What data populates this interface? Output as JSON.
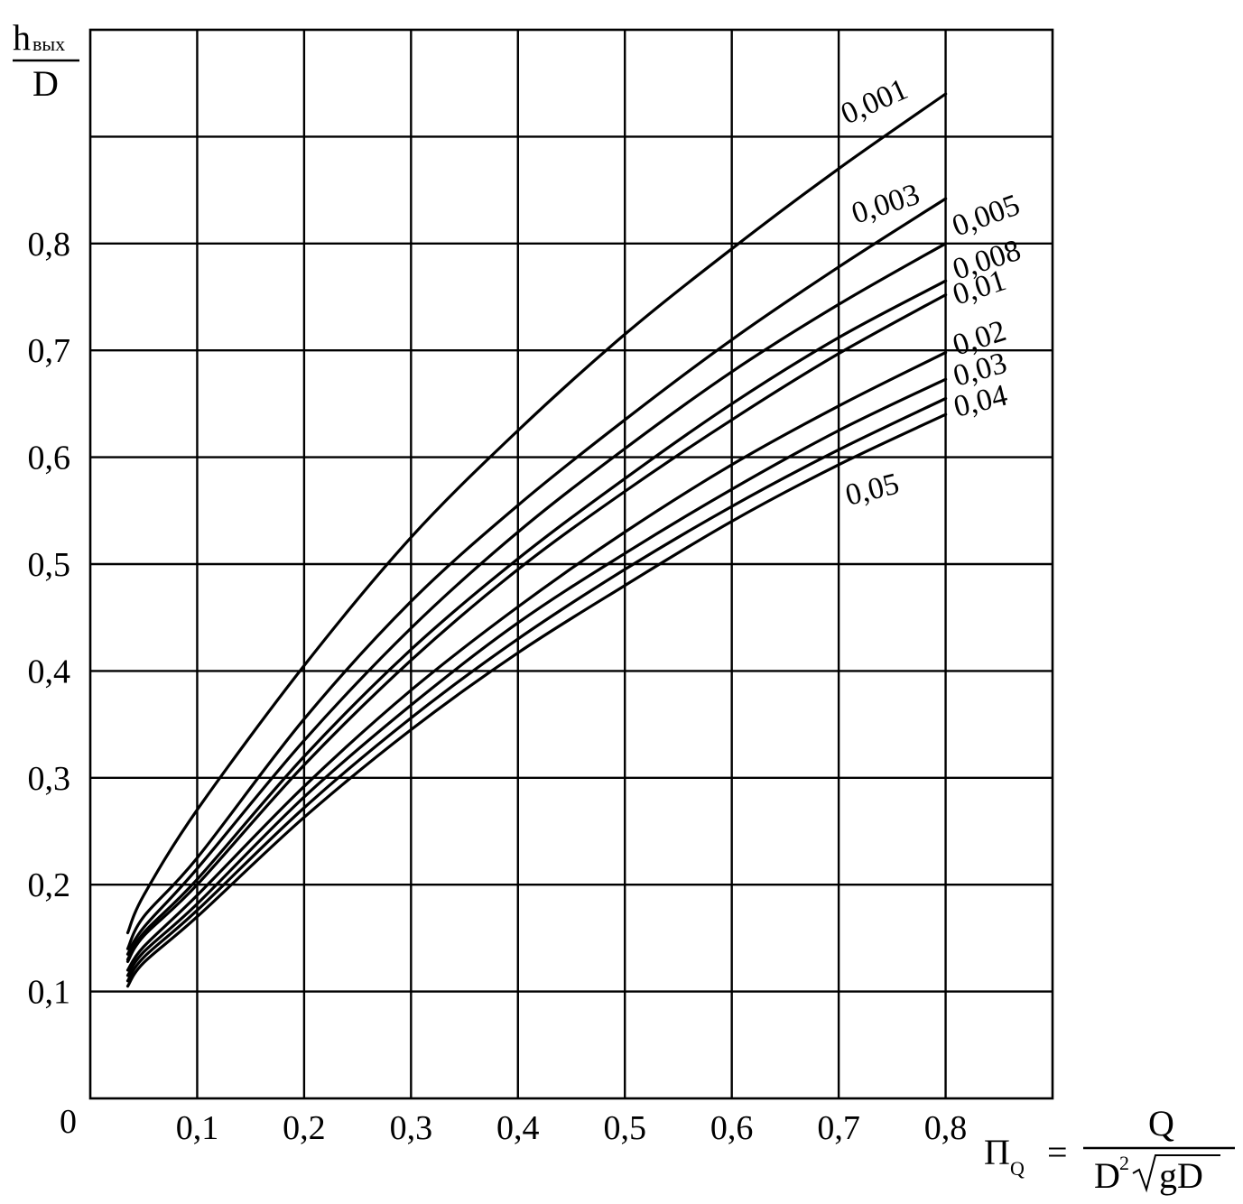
{
  "chart_data": {
    "type": "line",
    "title": "",
    "ylabel": {
      "numerator": "h",
      "numerator_sub": "вых",
      "denominator": "D"
    },
    "xlabel": {
      "symbol": "Π",
      "symbol_sub": "Q",
      "equals": "=",
      "numerator": "Q",
      "denominator_D": "D",
      "denominator_sup": "2",
      "denominator_root": "gD"
    },
    "origin_label": "0",
    "x_ticks": [
      "0,1",
      "0,2",
      "0,3",
      "0,4",
      "0,5",
      "0,6",
      "0,7",
      "0,8"
    ],
    "x_tick_values": [
      0.1,
      0.2,
      0.3,
      0.4,
      0.5,
      0.6,
      0.7,
      0.8
    ],
    "y_ticks": [
      "0,1",
      "0,2",
      "0,3",
      "0,4",
      "0,5",
      "0,6",
      "0,7",
      "0,8"
    ],
    "y_tick_values": [
      0.1,
      0.2,
      0.3,
      0.4,
      0.5,
      0.6,
      0.7,
      0.8
    ],
    "xlim": [
      0,
      0.9
    ],
    "ylim": [
      0,
      1.0
    ],
    "grid": true,
    "series": [
      {
        "name": "0,001",
        "x": [
          0.035,
          0.05,
          0.1,
          0.2,
          0.3,
          0.4,
          0.5,
          0.6,
          0.7,
          0.8
        ],
        "y": [
          0.155,
          0.19,
          0.27,
          0.405,
          0.525,
          0.625,
          0.715,
          0.795,
          0.87,
          0.94
        ]
      },
      {
        "name": "0,003",
        "x": [
          0.035,
          0.05,
          0.1,
          0.2,
          0.3,
          0.4,
          0.5,
          0.6,
          0.7,
          0.8
        ],
        "y": [
          0.14,
          0.17,
          0.225,
          0.355,
          0.465,
          0.555,
          0.635,
          0.71,
          0.778,
          0.842
        ]
      },
      {
        "name": "0,005",
        "x": [
          0.035,
          0.05,
          0.1,
          0.2,
          0.3,
          0.4,
          0.5,
          0.6,
          0.7,
          0.8
        ],
        "y": [
          0.135,
          0.16,
          0.215,
          0.335,
          0.44,
          0.53,
          0.608,
          0.68,
          0.743,
          0.8
        ]
      },
      {
        "name": "0,008",
        "x": [
          0.035,
          0.05,
          0.1,
          0.2,
          0.3,
          0.4,
          0.5,
          0.6,
          0.7,
          0.8
        ],
        "y": [
          0.13,
          0.155,
          0.205,
          0.32,
          0.42,
          0.505,
          0.58,
          0.65,
          0.712,
          0.765
        ]
      },
      {
        "name": "0,01",
        "x": [
          0.035,
          0.05,
          0.1,
          0.2,
          0.3,
          0.4,
          0.5,
          0.6,
          0.7,
          0.8
        ],
        "y": [
          0.128,
          0.152,
          0.2,
          0.312,
          0.41,
          0.495,
          0.568,
          0.635,
          0.697,
          0.752
        ]
      },
      {
        "name": "0,02",
        "x": [
          0.035,
          0.05,
          0.1,
          0.2,
          0.3,
          0.4,
          0.5,
          0.6,
          0.7,
          0.8
        ],
        "y": [
          0.12,
          0.142,
          0.19,
          0.292,
          0.382,
          0.46,
          0.53,
          0.593,
          0.648,
          0.698
        ]
      },
      {
        "name": "0,03",
        "x": [
          0.035,
          0.05,
          0.1,
          0.2,
          0.3,
          0.4,
          0.5,
          0.6,
          0.7,
          0.8
        ],
        "y": [
          0.115,
          0.137,
          0.182,
          0.282,
          0.368,
          0.445,
          0.51,
          0.57,
          0.625,
          0.673
        ]
      },
      {
        "name": "0,04",
        "x": [
          0.035,
          0.05,
          0.1,
          0.2,
          0.3,
          0.4,
          0.5,
          0.6,
          0.7,
          0.8
        ],
        "y": [
          0.11,
          0.132,
          0.176,
          0.272,
          0.356,
          0.43,
          0.495,
          0.554,
          0.607,
          0.655
        ]
      },
      {
        "name": "0,05",
        "x": [
          0.035,
          0.05,
          0.1,
          0.2,
          0.3,
          0.4,
          0.5,
          0.6,
          0.7,
          0.8
        ],
        "y": [
          0.105,
          0.127,
          0.17,
          0.263,
          0.345,
          0.417,
          0.48,
          0.54,
          0.593,
          0.64
        ]
      }
    ]
  }
}
